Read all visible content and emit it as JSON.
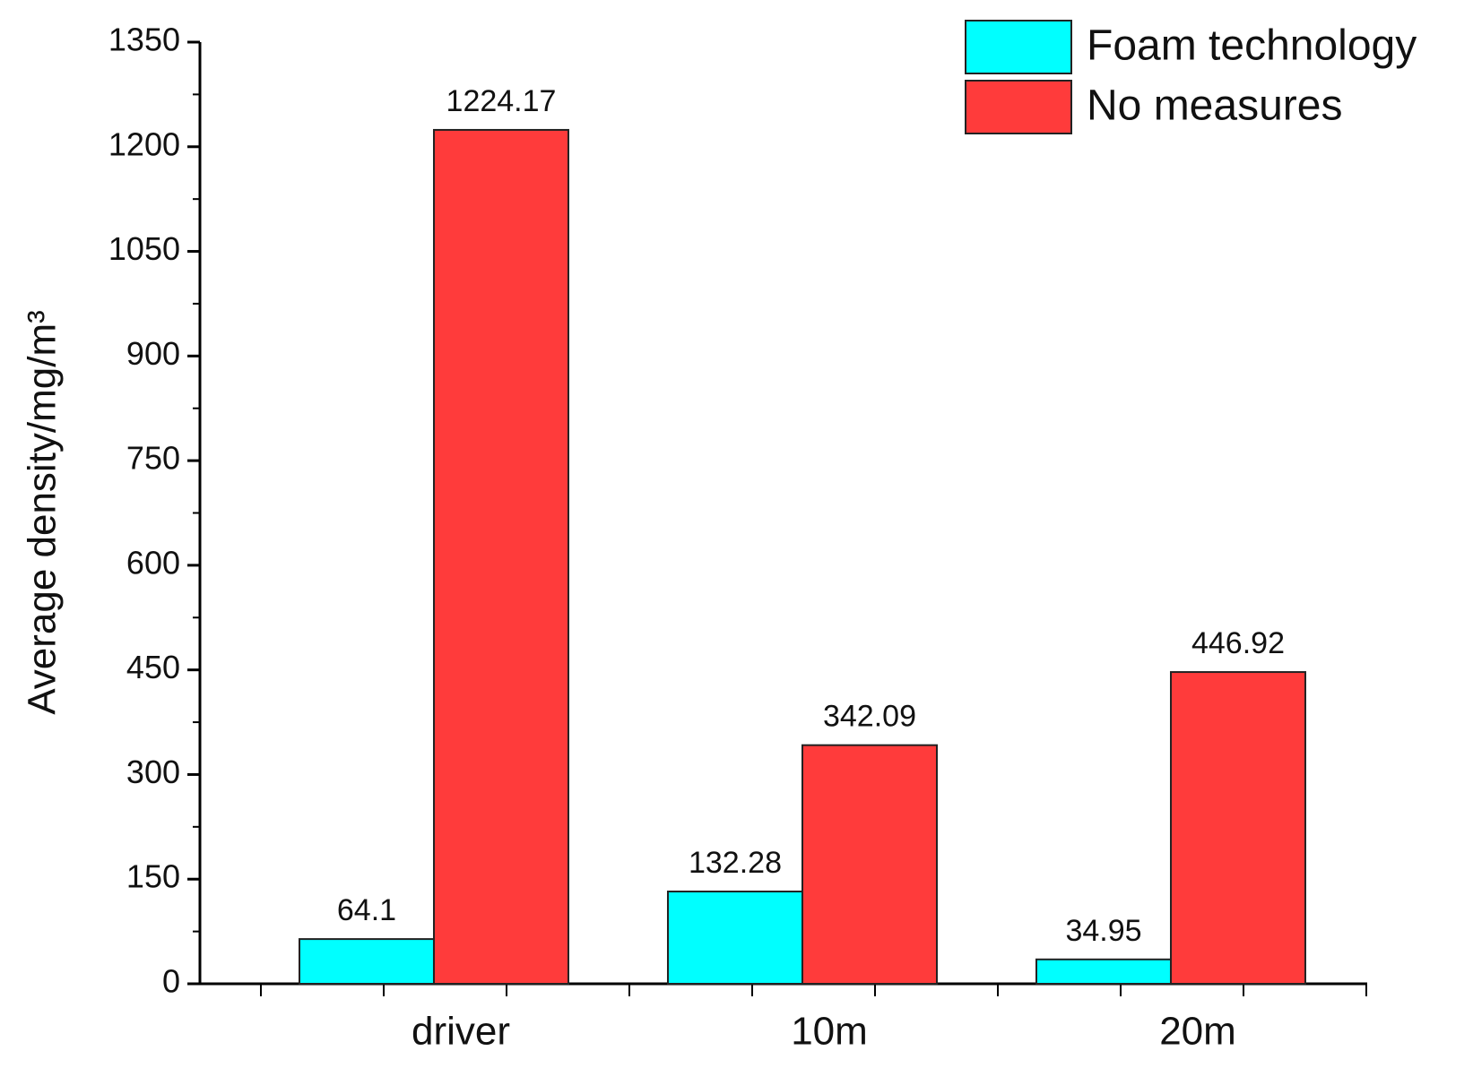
{
  "chart_data": {
    "type": "bar",
    "ylabel": "Average density/mg/m³",
    "categories": [
      "driver",
      "10m",
      "20m"
    ],
    "series": [
      {
        "name": "Foam technology",
        "color": "#00ffff",
        "values": [
          64.1,
          132.28,
          34.95
        ]
      },
      {
        "name": "No measures",
        "color": "#ff3b3b",
        "values": [
          1224.17,
          342.09,
          446.92
        ]
      }
    ],
    "ylim": [
      0,
      1350
    ],
    "yticks": [
      0,
      150,
      300,
      450,
      600,
      750,
      900,
      1050,
      1200,
      1350
    ],
    "legend": "upper right"
  }
}
